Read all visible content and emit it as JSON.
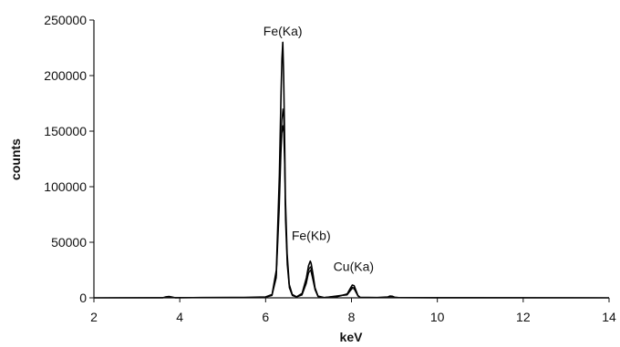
{
  "chart_data": {
    "type": "line",
    "title": "",
    "xlabel": "keV",
    "ylabel": "counts",
    "xlim": [
      2,
      14
    ],
    "ylim": [
      0,
      250000
    ],
    "x_ticks": [
      2,
      4,
      6,
      8,
      10,
      12,
      14
    ],
    "y_ticks": [
      0,
      50000,
      100000,
      150000,
      200000,
      250000
    ],
    "x_tick_labels": [
      "2",
      "4",
      "6",
      "8",
      "10",
      "12",
      "14"
    ],
    "y_tick_labels": [
      "0",
      "50000",
      "100000",
      "150000",
      "200000",
      "250000"
    ],
    "grid": false,
    "legend": "none",
    "annotations": [
      {
        "text": "Fe(Ka)",
        "x": 6.4,
        "y": 236000
      },
      {
        "text": "Fe(Kb)",
        "x": 7.06,
        "y": 52000
      },
      {
        "text": "Cu(Ka)",
        "x": 8.05,
        "y": 24000
      }
    ],
    "series": [
      {
        "line_color": "#000000",
        "x": [
          2.0,
          3.6,
          3.68,
          3.75,
          3.82,
          3.9,
          4.5,
          5.5,
          6.0,
          6.15,
          6.25,
          6.32,
          6.36,
          6.38,
          6.4,
          6.42,
          6.44,
          6.46,
          6.5,
          6.55,
          6.62,
          6.72,
          6.85,
          6.95,
          7.0,
          7.04,
          7.06,
          7.1,
          7.15,
          7.22,
          7.35,
          7.6,
          7.9,
          7.98,
          8.02,
          8.06,
          8.1,
          8.15,
          8.2,
          8.6,
          8.85,
          8.9,
          8.95,
          9.0,
          9.1,
          10.0,
          14.0
        ],
        "y": [
          0,
          0,
          900,
          1200,
          700,
          0,
          300,
          400,
          800,
          3000,
          25000,
          110000,
          185000,
          215000,
          230000,
          200000,
          150000,
          90000,
          40000,
          12000,
          3000,
          900,
          4000,
          18000,
          29000,
          33000,
          31000,
          22000,
          9000,
          1500,
          400,
          300,
          3500,
          9000,
          11500,
          11000,
          7000,
          2000,
          500,
          300,
          800,
          1600,
          1400,
          600,
          200,
          0,
          0
        ]
      },
      {
        "line_color": "#000000",
        "x": [
          2.0,
          6.0,
          6.15,
          6.25,
          6.32,
          6.36,
          6.38,
          6.4,
          6.42,
          6.44,
          6.46,
          6.5,
          6.55,
          6.62,
          6.72,
          6.85,
          6.95,
          7.0,
          7.04,
          7.06,
          7.1,
          7.15,
          7.22,
          7.35,
          7.9,
          7.98,
          8.02,
          8.06,
          8.1,
          8.15,
          8.2,
          14.0
        ],
        "y": [
          0,
          500,
          2500,
          20000,
          90000,
          140000,
          160000,
          170000,
          160000,
          130000,
          80000,
          35000,
          10000,
          2500,
          700,
          3000,
          15000,
          25000,
          28000,
          26000,
          19000,
          8000,
          1200,
          300,
          3000,
          7500,
          9500,
          9000,
          6000,
          1800,
          400,
          0
        ]
      },
      {
        "line_color": "#000000",
        "x": [
          2.0,
          6.0,
          6.15,
          6.25,
          6.32,
          6.36,
          6.38,
          6.4,
          6.42,
          6.44,
          6.46,
          6.5,
          6.55,
          6.62,
          6.72,
          6.85,
          6.95,
          7.0,
          7.04,
          7.06,
          7.1,
          7.15,
          7.22,
          7.35,
          7.9,
          7.98,
          8.02,
          8.06,
          8.1,
          8.15,
          8.2,
          14.0
        ],
        "y": [
          0,
          400,
          2000,
          18000,
          80000,
          130000,
          148000,
          155000,
          148000,
          120000,
          70000,
          30000,
          9000,
          2000,
          600,
          2500,
          13000,
          22000,
          25000,
          23000,
          16000,
          7000,
          1000,
          300,
          2500,
          6500,
          8500,
          8000,
          5000,
          1500,
          300,
          0
        ]
      }
    ]
  }
}
